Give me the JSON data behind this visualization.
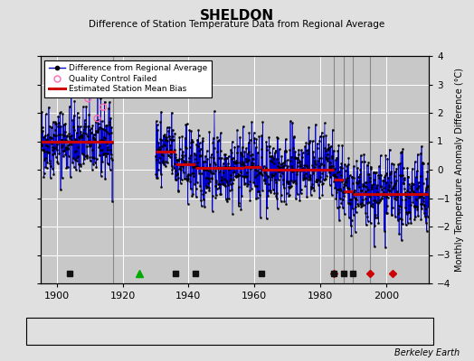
{
  "title": "SHELDON",
  "subtitle": "Difference of Station Temperature Data from Regional Average",
  "ylabel": "Monthly Temperature Anomaly Difference (°C)",
  "xlabel_years": [
    1900,
    1920,
    1940,
    1960,
    1980,
    2000
  ],
  "ylim": [
    -4,
    4
  ],
  "xlim": [
    1895,
    2013
  ],
  "background_color": "#e0e0e0",
  "plot_bg_color": "#c8c8c8",
  "grid_color": "#ffffff",
  "line_color": "#0000cc",
  "marker_color": "#000000",
  "bias_color": "#cc0000",
  "qc_color": "#ff69b4",
  "watermark": "Berkeley Earth",
  "gap_start": 1917,
  "gap_end": 1930,
  "bias_segments": [
    {
      "start": 1895,
      "end": 1917,
      "value": 1.0
    },
    {
      "start": 1930,
      "end": 1936,
      "value": 0.65
    },
    {
      "start": 1936,
      "end": 1942,
      "value": 0.18
    },
    {
      "start": 1942,
      "end": 1947,
      "value": 0.05
    },
    {
      "start": 1947,
      "end": 1957,
      "value": 0.05
    },
    {
      "start": 1957,
      "end": 1962,
      "value": 0.08
    },
    {
      "start": 1962,
      "end": 1984,
      "value": 0.0
    },
    {
      "start": 1984,
      "end": 1987,
      "value": -0.35
    },
    {
      "start": 1987,
      "end": 1990,
      "value": -0.75
    },
    {
      "start": 1990,
      "end": 1995,
      "value": -0.85
    },
    {
      "start": 1995,
      "end": 2013,
      "value": -0.85
    }
  ],
  "vert_lines": [
    1917,
    1984,
    1987,
    1990,
    1995
  ],
  "station_moves": [
    1984,
    1995,
    2002
  ],
  "record_gaps": [
    1925
  ],
  "obs_changes": [],
  "empirical_breaks": [
    1904,
    1936,
    1942,
    1962,
    1984,
    1987,
    1990
  ],
  "qc_points_t": [
    1909.5,
    1912.3,
    1914.1,
    1916.5
  ],
  "qc_points_v": [
    2.5,
    1.8,
    2.2,
    2.8
  ],
  "seed": 42
}
